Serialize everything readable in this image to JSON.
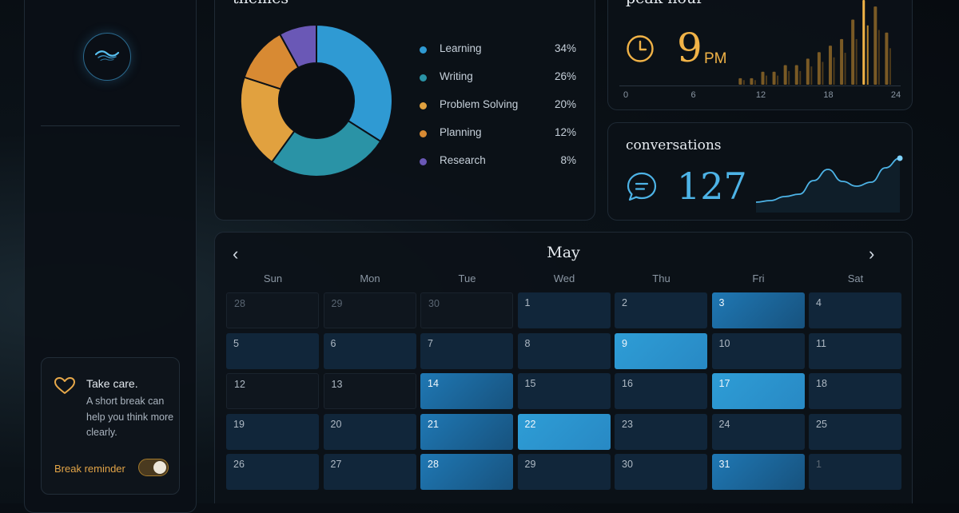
{
  "sidebar": {
    "logo_icon": "wave-logo-icon",
    "care_card": {
      "icon": "heart-icon",
      "title": "Take care.",
      "text": "A short break can help you think more clearly.",
      "toggle_label": "Break reminder",
      "toggle_on": true
    }
  },
  "themes": {
    "title": "themes",
    "items": [
      {
        "label": "Learning",
        "value": "34%",
        "color": "#2f9ad3"
      },
      {
        "label": "Writing",
        "value": "26%",
        "color": "#2a93a6"
      },
      {
        "label": "Problem Solving",
        "value": "20%",
        "color": "#e1a13f"
      },
      {
        "label": "Planning",
        "value": "12%",
        "color": "#d88a33"
      },
      {
        "label": "Research",
        "value": "8%",
        "color": "#6a58b6"
      }
    ]
  },
  "peak": {
    "title": "peak hour",
    "value": "9",
    "suffix": "PM",
    "icon": "clock-icon",
    "ticks": [
      "0",
      "6",
      "12",
      "18",
      "24"
    ],
    "peak_color": "#f1b347"
  },
  "conversations": {
    "title": "conversations",
    "count": "127",
    "icon": "chat-bubble-icon"
  },
  "calendar": {
    "month": "May",
    "prev_icon": "chevron-left-icon",
    "next_icon": "chevron-right-icon",
    "weekdays": [
      "Sun",
      "Mon",
      "Tue",
      "Wed",
      "Thu",
      "Fri",
      "Sat"
    ],
    "days": [
      {
        "d": "28",
        "other": true,
        "level": 0
      },
      {
        "d": "29",
        "other": true,
        "level": 0
      },
      {
        "d": "30",
        "other": true,
        "level": 0
      },
      {
        "d": "1",
        "level": 1
      },
      {
        "d": "2",
        "level": 1
      },
      {
        "d": "3",
        "level": 3
      },
      {
        "d": "4",
        "level": 1
      },
      {
        "d": "5",
        "level": 1
      },
      {
        "d": "6",
        "level": 1
      },
      {
        "d": "7",
        "level": 1
      },
      {
        "d": "8",
        "level": 1
      },
      {
        "d": "9",
        "level": 4
      },
      {
        "d": "10",
        "level": 1
      },
      {
        "d": "11",
        "level": 1
      },
      {
        "d": "12",
        "level": 0
      },
      {
        "d": "13",
        "level": 0
      },
      {
        "d": "14",
        "level": 3
      },
      {
        "d": "15",
        "level": 1
      },
      {
        "d": "16",
        "level": 1
      },
      {
        "d": "17",
        "level": 4
      },
      {
        "d": "18",
        "level": 1
      },
      {
        "d": "19",
        "level": 1
      },
      {
        "d": "20",
        "level": 1
      },
      {
        "d": "21",
        "level": 3
      },
      {
        "d": "22",
        "level": 4
      },
      {
        "d": "23",
        "level": 1
      },
      {
        "d": "24",
        "level": 1
      },
      {
        "d": "25",
        "level": 1
      },
      {
        "d": "26",
        "level": 1
      },
      {
        "d": "27",
        "level": 1
      },
      {
        "d": "28",
        "level": 3
      },
      {
        "d": "29",
        "level": 1
      },
      {
        "d": "30",
        "level": 1
      },
      {
        "d": "31",
        "level": 3
      },
      {
        "d": "1",
        "other": true,
        "level": 1
      }
    ]
  },
  "chart_data": [
    {
      "type": "pie",
      "title": "themes",
      "categories": [
        "Learning",
        "Writing",
        "Problem Solving",
        "Planning",
        "Research"
      ],
      "values": [
        34,
        26,
        20,
        12,
        8
      ]
    },
    {
      "type": "bar",
      "title": "peak hour",
      "x": [
        10,
        11,
        12,
        13,
        14,
        15,
        16,
        17,
        18,
        19,
        20,
        21,
        22,
        23
      ],
      "values": [
        1,
        1,
        2,
        2,
        3,
        3,
        4,
        5,
        6,
        7,
        10,
        13,
        12,
        8
      ],
      "xlim": [
        0,
        24
      ],
      "xticks": [
        "0",
        "6",
        "12",
        "18",
        "24"
      ],
      "highlight_x": 21
    },
    {
      "type": "line",
      "title": "conversations",
      "values": [
        0.5,
        0.7,
        1.2,
        1.5,
        3.2,
        4.6,
        3.1,
        2.5,
        3.0,
        4.8,
        6.0
      ],
      "ylim": [
        0,
        7
      ]
    }
  ]
}
